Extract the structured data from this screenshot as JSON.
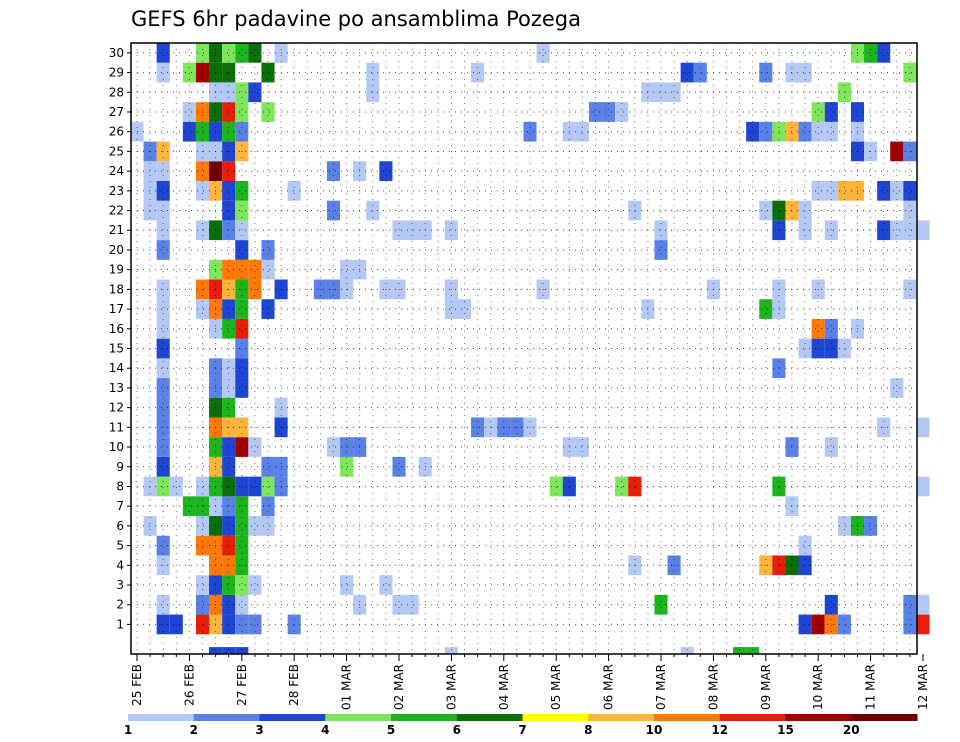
{
  "chart_data": {
    "type": "heatmap",
    "title": "GEFS 6hr padavine po ansamblima Pozega",
    "xlabel": "",
    "ylabel": "",
    "x_tick_labels": [
      "25 FEB",
      "26 FEB",
      "27 FEB",
      "28 FEB",
      "01 MAR",
      "02 MAR",
      "03 MAR",
      "04 MAR",
      "05 MAR",
      "06 MAR",
      "07 MAR",
      "08 MAR",
      "09 MAR",
      "10 MAR",
      "11 MAR",
      "12 MAR"
    ],
    "members": [
      1,
      2,
      3,
      4,
      5,
      6,
      7,
      8,
      9,
      10,
      11,
      12,
      13,
      14,
      15,
      16,
      17,
      18,
      19,
      20,
      21,
      22,
      23,
      24,
      25,
      26,
      27,
      28,
      29,
      30
    ],
    "steps_per_day": 4,
    "grid": true,
    "legend_position": "bottom",
    "legend": {
      "labels": [
        "1",
        "2",
        "3",
        "4",
        "5",
        "6",
        "7",
        "8",
        "10",
        "12",
        "15",
        "20"
      ],
      "colors": [
        "#b4c8f5",
        "#5a82e6",
        "#1e46d2",
        "#7de65a",
        "#1eb41e",
        "#0a6e0a",
        "#ffff00",
        "#ffb43c",
        "#ff780a",
        "#e61e0a",
        "#a00000",
        "#6e0000"
      ]
    },
    "cells": [
      [
        1,
        2,
        3
      ],
      [
        1,
        3,
        3
      ],
      [
        1,
        5,
        12
      ],
      [
        1,
        6,
        8
      ],
      [
        1,
        7,
        3
      ],
      [
        1,
        8,
        2
      ],
      [
        1,
        9,
        2
      ],
      [
        1,
        12,
        2
      ],
      [
        1,
        51,
        3
      ],
      [
        1,
        52,
        15
      ],
      [
        1,
        53,
        10
      ],
      [
        1,
        54,
        2
      ],
      [
        1,
        59,
        2
      ],
      [
        1,
        60,
        12
      ],
      [
        2,
        2,
        1
      ],
      [
        2,
        5,
        2
      ],
      [
        2,
        6,
        10
      ],
      [
        2,
        7,
        3
      ],
      [
        2,
        8,
        1
      ],
      [
        2,
        17,
        1
      ],
      [
        2,
        20,
        1
      ],
      [
        2,
        21,
        1
      ],
      [
        2,
        40,
        5
      ],
      [
        2,
        53,
        3
      ],
      [
        2,
        59,
        2
      ],
      [
        2,
        60,
        1
      ],
      [
        3,
        5,
        1
      ],
      [
        3,
        6,
        3
      ],
      [
        3,
        7,
        5
      ],
      [
        3,
        8,
        4
      ],
      [
        3,
        9,
        1
      ],
      [
        3,
        16,
        1
      ],
      [
        3,
        19,
        1
      ],
      [
        4,
        2,
        1
      ],
      [
        4,
        6,
        10
      ],
      [
        4,
        7,
        10
      ],
      [
        4,
        8,
        5
      ],
      [
        4,
        38,
        1
      ],
      [
        4,
        41,
        2
      ],
      [
        4,
        48,
        8
      ],
      [
        4,
        49,
        12
      ],
      [
        4,
        50,
        6
      ],
      [
        4,
        51,
        3
      ],
      [
        5,
        2,
        2
      ],
      [
        5,
        5,
        10
      ],
      [
        5,
        6,
        10
      ],
      [
        5,
        7,
        12
      ],
      [
        5,
        8,
        5
      ],
      [
        5,
        51,
        1
      ],
      [
        6,
        1,
        1
      ],
      [
        6,
        5,
        1
      ],
      [
        6,
        6,
        6
      ],
      [
        6,
        7,
        3
      ],
      [
        6,
        8,
        5
      ],
      [
        6,
        9,
        1
      ],
      [
        6,
        10,
        1
      ],
      [
        6,
        54,
        1
      ],
      [
        6,
        55,
        5
      ],
      [
        6,
        56,
        2
      ],
      [
        7,
        4,
        5
      ],
      [
        7,
        5,
        5
      ],
      [
        7,
        6,
        1
      ],
      [
        7,
        7,
        2
      ],
      [
        7,
        8,
        5
      ],
      [
        7,
        10,
        2
      ],
      [
        7,
        50,
        1
      ],
      [
        8,
        1,
        1
      ],
      [
        8,
        2,
        4
      ],
      [
        8,
        3,
        1
      ],
      [
        8,
        5,
        1
      ],
      [
        8,
        6,
        5
      ],
      [
        8,
        7,
        6
      ],
      [
        8,
        8,
        3
      ],
      [
        8,
        9,
        3
      ],
      [
        8,
        10,
        4
      ],
      [
        8,
        11,
        2
      ],
      [
        8,
        32,
        4
      ],
      [
        8,
        33,
        3
      ],
      [
        8,
        37,
        4
      ],
      [
        8,
        38,
        12
      ],
      [
        8,
        49,
        5
      ],
      [
        8,
        60,
        1
      ],
      [
        9,
        2,
        3
      ],
      [
        9,
        6,
        8
      ],
      [
        9,
        7,
        3
      ],
      [
        9,
        10,
        2
      ],
      [
        9,
        11,
        2
      ],
      [
        9,
        16,
        4
      ],
      [
        9,
        20,
        2
      ],
      [
        9,
        22,
        1
      ],
      [
        10,
        2,
        2
      ],
      [
        10,
        6,
        5
      ],
      [
        10,
        7,
        3
      ],
      [
        10,
        8,
        15
      ],
      [
        10,
        9,
        1
      ],
      [
        10,
        15,
        1
      ],
      [
        10,
        16,
        2
      ],
      [
        10,
        17,
        2
      ],
      [
        10,
        33,
        1
      ],
      [
        10,
        34,
        1
      ],
      [
        10,
        50,
        2
      ],
      [
        10,
        53,
        1
      ],
      [
        11,
        2,
        2
      ],
      [
        11,
        6,
        10
      ],
      [
        11,
        7,
        8
      ],
      [
        11,
        8,
        8
      ],
      [
        11,
        11,
        3
      ],
      [
        11,
        26,
        2
      ],
      [
        11,
        27,
        1
      ],
      [
        11,
        28,
        2
      ],
      [
        11,
        29,
        2
      ],
      [
        11,
        30,
        1
      ],
      [
        11,
        57,
        1
      ],
      [
        11,
        60,
        1
      ],
      [
        12,
        2,
        2
      ],
      [
        12,
        6,
        6
      ],
      [
        12,
        7,
        5
      ],
      [
        12,
        11,
        1
      ],
      [
        13,
        2,
        2
      ],
      [
        13,
        6,
        2
      ],
      [
        13,
        7,
        1
      ],
      [
        13,
        8,
        3
      ],
      [
        13,
        58,
        1
      ],
      [
        14,
        2,
        1
      ],
      [
        14,
        6,
        2
      ],
      [
        14,
        7,
        1
      ],
      [
        14,
        8,
        3
      ],
      [
        14,
        49,
        2
      ],
      [
        15,
        2,
        3
      ],
      [
        15,
        8,
        2
      ],
      [
        15,
        51,
        1
      ],
      [
        15,
        52,
        3
      ],
      [
        15,
        53,
        3
      ],
      [
        15,
        54,
        1
      ],
      [
        16,
        2,
        1
      ],
      [
        16,
        6,
        1
      ],
      [
        16,
        7,
        5
      ],
      [
        16,
        8,
        12
      ],
      [
        16,
        52,
        10
      ],
      [
        16,
        53,
        2
      ],
      [
        16,
        55,
        1
      ],
      [
        17,
        2,
        1
      ],
      [
        17,
        5,
        1
      ],
      [
        17,
        6,
        10
      ],
      [
        17,
        7,
        3
      ],
      [
        17,
        8,
        5
      ],
      [
        17,
        10,
        3
      ],
      [
        17,
        24,
        1
      ],
      [
        17,
        25,
        1
      ],
      [
        17,
        39,
        1
      ],
      [
        17,
        48,
        5
      ],
      [
        17,
        49,
        1
      ],
      [
        18,
        2,
        1
      ],
      [
        18,
        5,
        10
      ],
      [
        18,
        6,
        12
      ],
      [
        18,
        7,
        8
      ],
      [
        18,
        8,
        5
      ],
      [
        18,
        9,
        10
      ],
      [
        18,
        11,
        3
      ],
      [
        18,
        14,
        2
      ],
      [
        18,
        15,
        2
      ],
      [
        18,
        16,
        1
      ],
      [
        18,
        19,
        1
      ],
      [
        18,
        20,
        1
      ],
      [
        18,
        24,
        1
      ],
      [
        18,
        31,
        1
      ],
      [
        18,
        44,
        1
      ],
      [
        18,
        49,
        1
      ],
      [
        18,
        52,
        1
      ],
      [
        18,
        59,
        1
      ],
      [
        19,
        6,
        4
      ],
      [
        19,
        7,
        10
      ],
      [
        19,
        8,
        10
      ],
      [
        19,
        9,
        10
      ],
      [
        19,
        10,
        1
      ],
      [
        19,
        16,
        1
      ],
      [
        19,
        17,
        1
      ],
      [
        20,
        2,
        2
      ],
      [
        20,
        8,
        3
      ],
      [
        20,
        10,
        2
      ],
      [
        20,
        40,
        2
      ],
      [
        21,
        2,
        1
      ],
      [
        21,
        5,
        1
      ],
      [
        21,
        6,
        6
      ],
      [
        21,
        7,
        2
      ],
      [
        21,
        8,
        1
      ],
      [
        21,
        20,
        1
      ],
      [
        21,
        21,
        1
      ],
      [
        21,
        22,
        1
      ],
      [
        21,
        24,
        1
      ],
      [
        21,
        40,
        1
      ],
      [
        21,
        49,
        3
      ],
      [
        21,
        51,
        1
      ],
      [
        21,
        53,
        1
      ],
      [
        21,
        57,
        3
      ],
      [
        21,
        58,
        1
      ],
      [
        21,
        59,
        1
      ],
      [
        21,
        60,
        1
      ],
      [
        22,
        1,
        1
      ],
      [
        22,
        2,
        1
      ],
      [
        22,
        7,
        3
      ],
      [
        22,
        8,
        4
      ],
      [
        22,
        15,
        2
      ],
      [
        22,
        18,
        1
      ],
      [
        22,
        38,
        1
      ],
      [
        22,
        48,
        1
      ],
      [
        22,
        49,
        6
      ],
      [
        22,
        50,
        8
      ],
      [
        22,
        51,
        1
      ],
      [
        22,
        59,
        1
      ],
      [
        23,
        1,
        1
      ],
      [
        23,
        2,
        3
      ],
      [
        23,
        5,
        1
      ],
      [
        23,
        6,
        8
      ],
      [
        23,
        7,
        3
      ],
      [
        23,
        8,
        5
      ],
      [
        23,
        12,
        1
      ],
      [
        23,
        52,
        1
      ],
      [
        23,
        53,
        1
      ],
      [
        23,
        54,
        8
      ],
      [
        23,
        55,
        8
      ],
      [
        23,
        57,
        3
      ],
      [
        23,
        58,
        1
      ],
      [
        23,
        59,
        3
      ],
      [
        24,
        1,
        1
      ],
      [
        24,
        2,
        1
      ],
      [
        24,
        5,
        10
      ],
      [
        24,
        6,
        20
      ],
      [
        24,
        7,
        12
      ],
      [
        24,
        15,
        2
      ],
      [
        24,
        17,
        1
      ],
      [
        24,
        19,
        3
      ],
      [
        25,
        1,
        2
      ],
      [
        25,
        2,
        8
      ],
      [
        25,
        5,
        1
      ],
      [
        25,
        6,
        1
      ],
      [
        25,
        7,
        3
      ],
      [
        25,
        8,
        8
      ],
      [
        25,
        55,
        3
      ],
      [
        25,
        56,
        1
      ],
      [
        25,
        58,
        15
      ],
      [
        25,
        59,
        2
      ],
      [
        26,
        0,
        1
      ],
      [
        26,
        4,
        3
      ],
      [
        26,
        5,
        5
      ],
      [
        26,
        6,
        3
      ],
      [
        26,
        7,
        5
      ],
      [
        26,
        8,
        2
      ],
      [
        26,
        30,
        2
      ],
      [
        26,
        33,
        1
      ],
      [
        26,
        34,
        1
      ],
      [
        26,
        47,
        3
      ],
      [
        26,
        48,
        2
      ],
      [
        26,
        49,
        4
      ],
      [
        26,
        50,
        8
      ],
      [
        26,
        51,
        2
      ],
      [
        26,
        52,
        1
      ],
      [
        26,
        53,
        1
      ],
      [
        26,
        55,
        1
      ],
      [
        27,
        4,
        1
      ],
      [
        27,
        5,
        10
      ],
      [
        27,
        6,
        6
      ],
      [
        27,
        7,
        12
      ],
      [
        27,
        8,
        4
      ],
      [
        27,
        10,
        4
      ],
      [
        27,
        35,
        2
      ],
      [
        27,
        36,
        2
      ],
      [
        27,
        37,
        1
      ],
      [
        27,
        52,
        4
      ],
      [
        27,
        53,
        3
      ],
      [
        27,
        55,
        3
      ],
      [
        28,
        6,
        1
      ],
      [
        28,
        7,
        1
      ],
      [
        28,
        8,
        4
      ],
      [
        28,
        9,
        3
      ],
      [
        28,
        18,
        1
      ],
      [
        28,
        39,
        1
      ],
      [
        28,
        40,
        1
      ],
      [
        28,
        41,
        1
      ],
      [
        28,
        54,
        4
      ],
      [
        29,
        2,
        1
      ],
      [
        29,
        4,
        4
      ],
      [
        29,
        5,
        15
      ],
      [
        29,
        6,
        6
      ],
      [
        29,
        7,
        6
      ],
      [
        29,
        10,
        6
      ],
      [
        29,
        18,
        1
      ],
      [
        29,
        26,
        1
      ],
      [
        29,
        42,
        3
      ],
      [
        29,
        43,
        2
      ],
      [
        29,
        48,
        2
      ],
      [
        29,
        50,
        1
      ],
      [
        29,
        51,
        1
      ],
      [
        29,
        59,
        4
      ],
      [
        30,
        2,
        3
      ],
      [
        30,
        5,
        4
      ],
      [
        30,
        6,
        6
      ],
      [
        30,
        7,
        4
      ],
      [
        30,
        8,
        5
      ],
      [
        30,
        9,
        6
      ],
      [
        30,
        11,
        1
      ],
      [
        30,
        31,
        1
      ],
      [
        30,
        55,
        4
      ],
      [
        30,
        56,
        5
      ],
      [
        30,
        57,
        3
      ],
      [
        0,
        6,
        3
      ],
      [
        0,
        7,
        3
      ],
      [
        0,
        8,
        3
      ],
      [
        0,
        24,
        1
      ],
      [
        0,
        42,
        1
      ],
      [
        0,
        46,
        5
      ],
      [
        0,
        47,
        5
      ]
    ]
  }
}
